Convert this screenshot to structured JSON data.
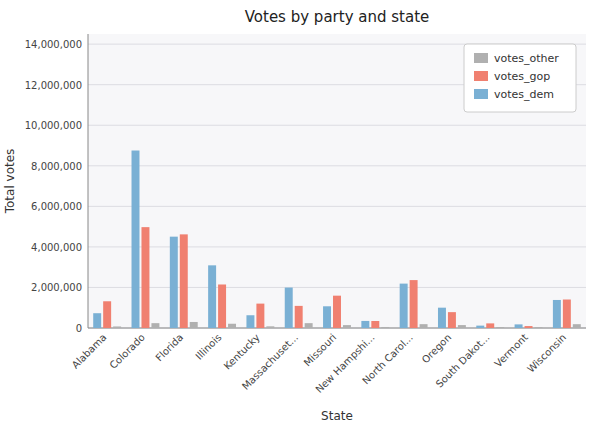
{
  "chart_data": {
    "type": "bar",
    "title": "Votes by party and state",
    "xlabel": "State",
    "ylabel": "Total votes",
    "categories": [
      "Alabama",
      "Colorado",
      "Florida",
      "Illinois",
      "Kentucky",
      "Massachuset...",
      "Missouri",
      "New Hampshi...",
      "North Carol...",
      "Oregon",
      "South Dakot...",
      "Vermont",
      "Wisconsin"
    ],
    "series": [
      {
        "name": "votes_dem",
        "color": "#7ab0d4",
        "values": [
          729547,
          8753788,
          4504975,
          3090729,
          628854,
          1995196,
          1071068,
          348526,
          2189316,
          1002106,
          117458,
          178573,
          1382536
        ]
      },
      {
        "name": "votes_gop",
        "color": "#f08070",
        "values": [
          1318255,
          4974338,
          4617886,
          2146015,
          1202971,
          1090893,
          1594511,
          345790,
          2362631,
          782403,
          227721,
          95369,
          1405284
        ]
      },
      {
        "name": "votes_other",
        "color": "#b0b0b0",
        "values": [
          75570,
          238866,
          297178,
          209596,
          82493,
          238957,
          143026,
          49980,
          189617,
          143632,
          46530,
          41125,
          188330
        ]
      }
    ],
    "ylim": [
      0,
      14500000
    ],
    "yticks": [
      0,
      {
        "value": 2000000,
        "label": "2,000,000"
      },
      {
        "value": 4000000,
        "label": "4,000,000"
      },
      {
        "value": 6000000,
        "label": "6,000,000"
      },
      {
        "value": 8000000,
        "label": "8,000,000"
      },
      {
        "value": 10000000,
        "label": "10,000,000"
      },
      {
        "value": 12000000,
        "label": "12,000,000"
      },
      {
        "value": 14000000,
        "label": "14,000,000"
      }
    ],
    "grid": true,
    "legend": "upper right"
  }
}
